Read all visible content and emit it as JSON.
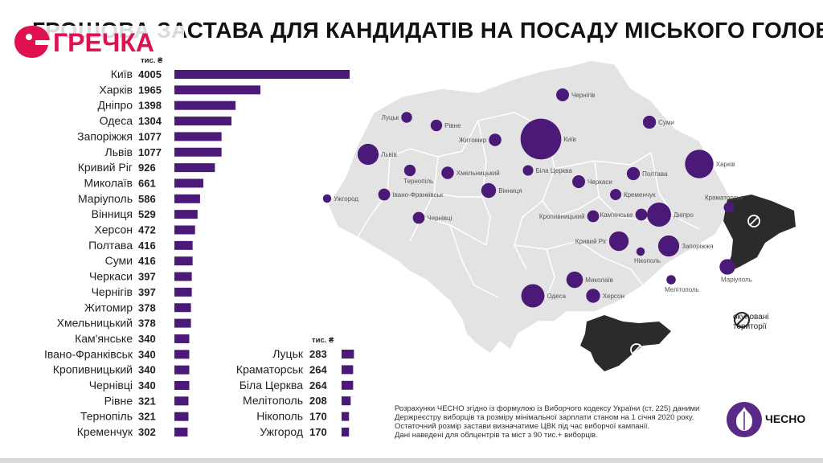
{
  "title": "ГРОШОВА ЗАСТАВА ДЛЯ КАНДИДАТІВ НА ПОСАДУ МІСЬКОГО ГОЛОВИ",
  "logo_text": "ГРЕЧКА",
  "brand": "ЧЕСНО",
  "colors": {
    "bar": "#4b1a78",
    "map_land": "#e3e3e3",
    "map_border": "#ffffff",
    "occupied": "#2b2b2b",
    "text": "#222222"
  },
  "chart_data": {
    "type": "bar",
    "orientation": "horizontal",
    "unit": "тис. ₴",
    "groups": [
      {
        "unit": "тис. ₴",
        "categories": [
          "Київ",
          "Харків",
          "Дніпро",
          "Одеса",
          "Запоріжжя",
          "Львів",
          "Кривий Ріг",
          "Миколаїв",
          "Маріуполь",
          "Вінниця",
          "Херсон",
          "Полтава",
          "Суми",
          "Черкаси",
          "Чернігів",
          "Житомир",
          "Хмельницький",
          "Кам'янське",
          "Івано-Франківськ",
          "Кропивницький",
          "Чернівці",
          "Рівне",
          "Тернопіль",
          "Кременчук"
        ],
        "values": [
          4005,
          1965,
          1398,
          1304,
          1077,
          1077,
          926,
          661,
          586,
          529,
          472,
          416,
          416,
          397,
          397,
          378,
          378,
          340,
          340,
          340,
          340,
          321,
          321,
          302
        ]
      },
      {
        "unit": "тис. ₴",
        "categories": [
          "Луцьк",
          "Краматорськ",
          "Біла Церква",
          "Мелітополь",
          "Нікополь",
          "Ужгород"
        ],
        "values": [
          283,
          264,
          264,
          208,
          170,
          170
        ]
      }
    ],
    "map_labels": [
      "Чернігів",
      "Луцьк",
      "Рівне",
      "Суми",
      "Житомир",
      "Київ",
      "Львів",
      "Харків",
      "Тернопіль",
      "Хмельницький",
      "Біла Церква",
      "Полтава",
      "Черкаси",
      "Ужгород",
      "Івано-Франківськ",
      "Вінниця",
      "Кременчук",
      "Краматорськ",
      "Чернівці",
      "Кропивницький",
      "Кам'янське",
      "Дніпро",
      "Кривий Ріг",
      "Запоріжжя",
      "Нікополь",
      "Маріуполь",
      "Миколаїв",
      "Мелітополь",
      "Одеса",
      "Херсон"
    ]
  },
  "legend": {
    "occupied_line1": "окуповані",
    "occupied_line2": "території"
  },
  "note": [
    "Розрахунки ЧЕСНО згідно із формулою із Виборчого кодексу України (ст. 225) даними",
    "Держреєстру виборців та розміру мінімальної зарплати станом на 1 січня 2020 року.",
    "Остаточний розмір застави визначатиме ЦВК під час виборчої кампанії.",
    "Дані наведені для облцентрів та міст з 90 тис.+ виборців."
  ]
}
